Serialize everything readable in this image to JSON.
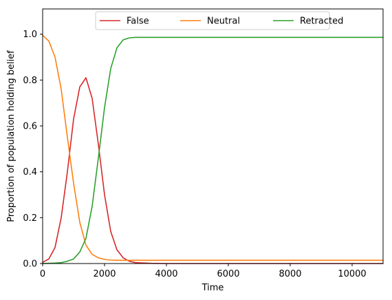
{
  "chart_data": {
    "type": "line",
    "xlabel": "Time",
    "ylabel": "Proportion of population holding belief",
    "xlim": [
      0,
      11000
    ],
    "ylim": [
      0,
      1.11
    ],
    "xticks": [
      0,
      2000,
      4000,
      6000,
      8000,
      10000
    ],
    "xtick_labels": [
      "0",
      "2000",
      "4000",
      "6000",
      "8000",
      "10000"
    ],
    "yticks": [
      0,
      0.2,
      0.4,
      0.6,
      0.8,
      1.0
    ],
    "ytick_labels": [
      "0.0",
      "0.2",
      "0.4",
      "0.6",
      "0.8",
      "1.0"
    ],
    "grid": false,
    "legend_position": "top-center",
    "x": [
      0,
      200,
      400,
      600,
      800,
      1000,
      1200,
      1400,
      1600,
      1800,
      2000,
      2200,
      2400,
      2600,
      2800,
      3000,
      3500,
      4000,
      5000,
      6000,
      7000,
      8000,
      9000,
      10000,
      11000
    ],
    "series": [
      {
        "name": "False",
        "color": "#d62728",
        "values": [
          0.005,
          0.02,
          0.07,
          0.2,
          0.4,
          0.63,
          0.77,
          0.81,
          0.72,
          0.52,
          0.3,
          0.14,
          0.06,
          0.025,
          0.01,
          0.004,
          0.001,
          0.0,
          0.0,
          0.0,
          0.0,
          0.0,
          0.0,
          0.0,
          0.0
        ]
      },
      {
        "name": "Neutral",
        "color": "#ff7f0e",
        "values": [
          0.995,
          0.97,
          0.9,
          0.76,
          0.55,
          0.35,
          0.18,
          0.08,
          0.04,
          0.025,
          0.018,
          0.015,
          0.014,
          0.014,
          0.014,
          0.014,
          0.014,
          0.014,
          0.014,
          0.014,
          0.014,
          0.014,
          0.014,
          0.014,
          0.014
        ]
      },
      {
        "name": "Retracted",
        "color": "#2ca02c",
        "values": [
          0.0,
          0.001,
          0.002,
          0.004,
          0.01,
          0.02,
          0.05,
          0.11,
          0.25,
          0.46,
          0.68,
          0.85,
          0.94,
          0.975,
          0.984,
          0.986,
          0.986,
          0.986,
          0.986,
          0.986,
          0.986,
          0.986,
          0.986,
          0.986,
          0.986
        ]
      }
    ]
  }
}
